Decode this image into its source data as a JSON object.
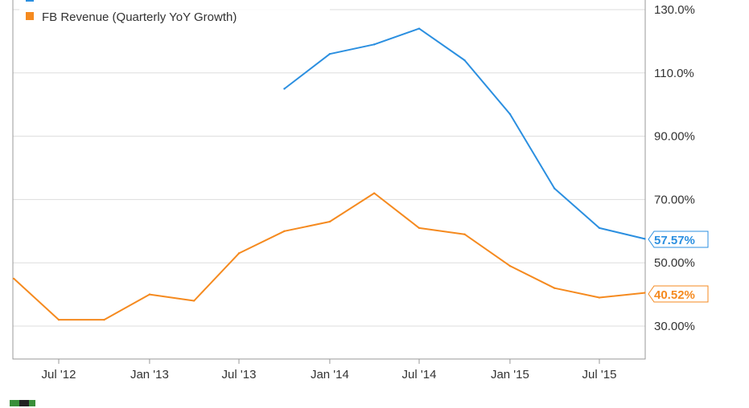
{
  "chart_data": {
    "type": "line",
    "title": "",
    "xlabel": "",
    "ylabel": "",
    "x_ticks": [
      "Jul '12",
      "Jan '13",
      "Jul '13",
      "Jan '14",
      "Jul '14",
      "Jan '15",
      "Jul '15"
    ],
    "y_ticks": [
      "30.00%",
      "50.00%",
      "70.00%",
      "90.00%",
      "110.0%",
      "130.0%"
    ],
    "ylim": [
      19,
      133
    ],
    "grid": true,
    "legend_position": "top-left",
    "series": [
      {
        "name": "",
        "color": "#2b8fe0",
        "end_label": "57.57%",
        "points": [
          {
            "x": "2013-09-30",
            "y": 105
          },
          {
            "x": "2013-12-31",
            "y": 116
          },
          {
            "x": "2014-03-31",
            "y": 119
          },
          {
            "x": "2014-06-30",
            "y": 124
          },
          {
            "x": "2014-09-30",
            "y": 114
          },
          {
            "x": "2014-12-31",
            "y": 97
          },
          {
            "x": "2015-03-31",
            "y": 73.5
          },
          {
            "x": "2015-06-30",
            "y": 61
          },
          {
            "x": "2015-09-30",
            "y": 57.57
          }
        ]
      },
      {
        "name": "FB Revenue (Quarterly YoY Growth)",
        "color": "#f58a1f",
        "end_label": "40.52%",
        "points": [
          {
            "x": "2012-03-31",
            "y": 45
          },
          {
            "x": "2012-06-30",
            "y": 32
          },
          {
            "x": "2012-09-30",
            "y": 32
          },
          {
            "x": "2012-12-31",
            "y": 40
          },
          {
            "x": "2013-03-31",
            "y": 38
          },
          {
            "x": "2013-06-30",
            "y": 53
          },
          {
            "x": "2013-09-30",
            "y": 60
          },
          {
            "x": "2013-12-31",
            "y": 63
          },
          {
            "x": "2014-03-31",
            "y": 72
          },
          {
            "x": "2014-06-30",
            "y": 61
          },
          {
            "x": "2014-09-30",
            "y": 59
          },
          {
            "x": "2014-12-31",
            "y": 49
          },
          {
            "x": "2015-03-31",
            "y": 42
          },
          {
            "x": "2015-06-30",
            "y": 39
          },
          {
            "x": "2015-09-30",
            "y": 40.52
          }
        ]
      }
    ]
  }
}
